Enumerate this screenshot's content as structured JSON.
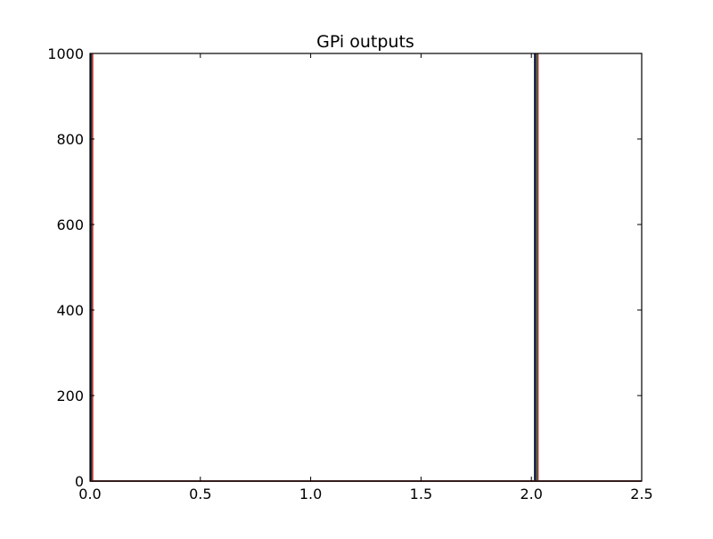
{
  "chart_data": {
    "type": "line",
    "title": "GPi outputs",
    "xlabel": "",
    "ylabel": "",
    "xlim": [
      0.0,
      2.5
    ],
    "ylim": [
      0,
      1000
    ],
    "x_ticks": [
      "0.0",
      "0.5",
      "1.0",
      "1.5",
      "2.0",
      "2.5"
    ],
    "x_tick_values": [
      0.0,
      0.5,
      1.0,
      1.5,
      2.0,
      2.5
    ],
    "y_ticks": [
      "0",
      "200",
      "400",
      "600",
      "800",
      "1000"
    ],
    "y_tick_values": [
      0,
      200,
      400,
      600,
      800,
      1000
    ],
    "grid": false,
    "legend": "none",
    "series": [
      {
        "color": "#000000",
        "x": [
          0.0,
          0.005,
          0.005,
          0.005,
          2.015,
          2.015,
          2.015,
          2.5
        ],
        "y": [
          0,
          0,
          1000,
          0,
          0,
          1000,
          0,
          0
        ]
      },
      {
        "color": "#1f2a8a",
        "x": [
          0.0,
          0.008,
          0.008,
          0.008,
          2.02,
          2.02,
          2.02,
          2.5
        ],
        "y": [
          0,
          0,
          1000,
          0,
          0,
          1000,
          0,
          0
        ]
      },
      {
        "color": "#2e7d32",
        "x": [
          0.0,
          0.01,
          0.01,
          0.01,
          2.025,
          2.025,
          2.025,
          2.5
        ],
        "y": [
          0,
          0,
          1000,
          0,
          0,
          1000,
          0,
          0
        ]
      },
      {
        "color": "#c62828",
        "x": [
          0.0,
          0.012,
          0.012,
          0.012,
          2.03,
          2.03,
          2.03,
          2.5
        ],
        "y": [
          0,
          0,
          1000,
          0,
          0,
          1000,
          0,
          0
        ]
      }
    ]
  }
}
